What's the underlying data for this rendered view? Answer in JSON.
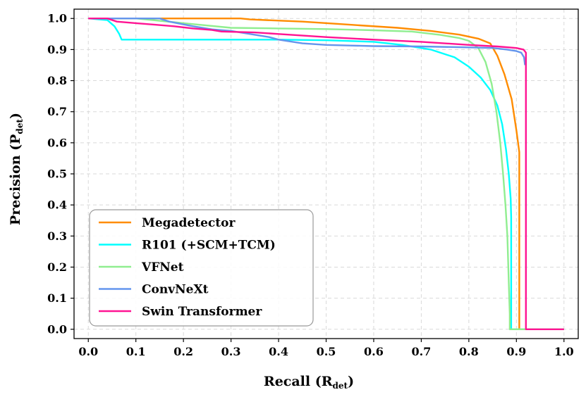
{
  "chart_data": {
    "type": "line",
    "title": "",
    "xlabel": "Recall (R",
    "xlabel_sub": "det",
    "ylabel": "Precision (P",
    "ylabel_sub": "det",
    "xlim": [
      -0.03,
      1.03
    ],
    "ylim": [
      -0.03,
      1.03
    ],
    "xticks": [
      "0.0",
      "0.1",
      "0.2",
      "0.3",
      "0.4",
      "0.5",
      "0.6",
      "0.7",
      "0.8",
      "0.9",
      "1.0"
    ],
    "yticks": [
      "0.0",
      "0.1",
      "0.2",
      "0.3",
      "0.4",
      "0.5",
      "0.6",
      "0.7",
      "0.8",
      "0.9",
      "1.0"
    ],
    "grid": true,
    "legend_position": "lower-left",
    "series": [
      {
        "name": "Megadetector",
        "color": "#ff8c00",
        "x": [
          0.0,
          0.16,
          0.32,
          0.34,
          0.45,
          0.55,
          0.65,
          0.72,
          0.78,
          0.82,
          0.845,
          0.86,
          0.875,
          0.89,
          0.9,
          0.906,
          0.906,
          1.0
        ],
        "y": [
          1.0,
          1.0,
          1.0,
          0.997,
          0.99,
          0.98,
          0.97,
          0.96,
          0.948,
          0.935,
          0.92,
          0.88,
          0.82,
          0.74,
          0.64,
          0.57,
          0.0,
          0.0
        ]
      },
      {
        "name": "R101 (+SCM+TCM)",
        "color": "#00ffff",
        "x": [
          0.0,
          0.04,
          0.055,
          0.065,
          0.07,
          0.2,
          0.4,
          0.5,
          0.6,
          0.66,
          0.72,
          0.77,
          0.8,
          0.825,
          0.845,
          0.86,
          0.87,
          0.878,
          0.884,
          0.888,
          0.889,
          0.889,
          1.0
        ],
        "y": [
          1.0,
          0.995,
          0.975,
          0.95,
          0.932,
          0.932,
          0.932,
          0.93,
          0.925,
          0.915,
          0.9,
          0.875,
          0.845,
          0.81,
          0.77,
          0.72,
          0.66,
          0.58,
          0.5,
          0.42,
          0.36,
          0.0,
          0.0
        ]
      },
      {
        "name": "VFNet",
        "color": "#90ee90",
        "x": [
          0.0,
          0.1,
          0.2,
          0.3,
          0.4,
          0.5,
          0.6,
          0.68,
          0.74,
          0.78,
          0.8,
          0.82,
          0.835,
          0.848,
          0.858,
          0.866,
          0.872,
          0.877,
          0.881,
          0.884,
          0.886,
          0.886,
          0.92,
          1.0
        ],
        "y": [
          1.0,
          1.0,
          0.985,
          0.97,
          0.968,
          0.966,
          0.962,
          0.958,
          0.947,
          0.937,
          0.928,
          0.905,
          0.86,
          0.79,
          0.7,
          0.6,
          0.5,
          0.4,
          0.3,
          0.15,
          0.05,
          0.0,
          0.0,
          0.0
        ]
      },
      {
        "name": "ConvNeXt",
        "color": "#6495ed",
        "x": [
          0.0,
          0.15,
          0.17,
          0.22,
          0.26,
          0.3,
          0.34,
          0.38,
          0.4,
          0.45,
          0.5,
          0.55,
          0.6,
          0.7,
          0.8,
          0.85,
          0.88,
          0.9,
          0.91,
          0.916,
          0.918
        ],
        "y": [
          1.0,
          1.0,
          0.99,
          0.975,
          0.965,
          0.96,
          0.95,
          0.94,
          0.932,
          0.92,
          0.915,
          0.913,
          0.911,
          0.91,
          0.907,
          0.905,
          0.9,
          0.895,
          0.89,
          0.875,
          0.85
        ]
      },
      {
        "name": "Swin Transformer",
        "color": "#ff1493",
        "x": [
          0.0,
          0.04,
          0.06,
          0.1,
          0.14,
          0.18,
          0.22,
          0.26,
          0.28,
          0.3,
          0.35,
          0.4,
          0.5,
          0.6,
          0.7,
          0.8,
          0.86,
          0.9,
          0.915,
          0.92,
          0.92,
          0.92,
          1.0
        ],
        "y": [
          1.0,
          1.0,
          0.99,
          0.985,
          0.98,
          0.975,
          0.968,
          0.963,
          0.958,
          0.957,
          0.955,
          0.95,
          0.94,
          0.932,
          0.925,
          0.915,
          0.91,
          0.905,
          0.9,
          0.89,
          0.6,
          0.0,
          0.0
        ]
      }
    ]
  }
}
